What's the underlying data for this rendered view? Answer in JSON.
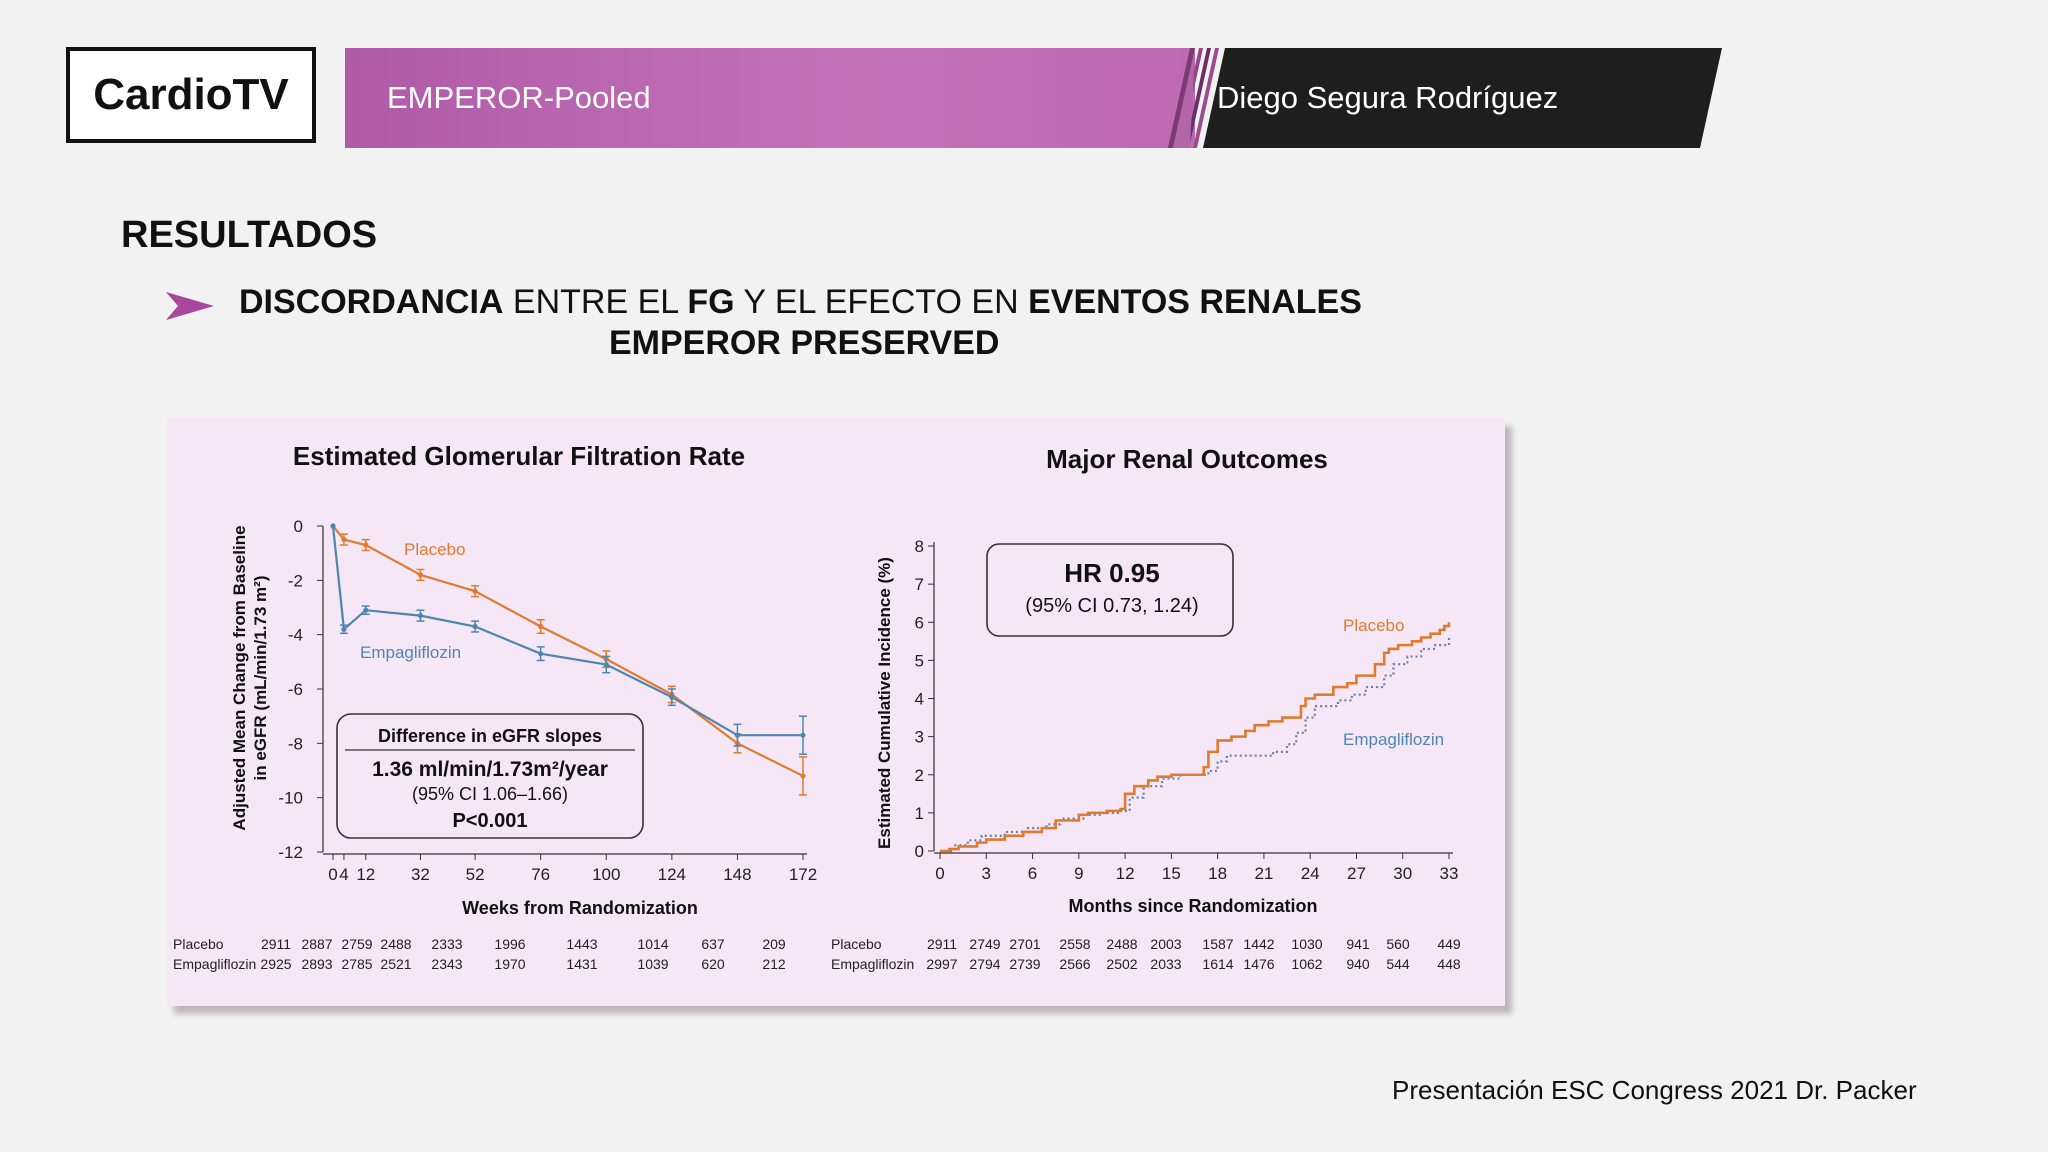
{
  "header": {
    "logo": "CardioTV",
    "title": "EMPEROR-Pooled",
    "speaker": "Diego Segura Rodríguez"
  },
  "slide": {
    "heading": "RESULTADOS",
    "subtitle_parts": [
      {
        "text": "DISCORDANCIA",
        "bold": true
      },
      {
        "text": " ENTRE EL ",
        "bold": false
      },
      {
        "text": "FG",
        "bold": true
      },
      {
        "text": " Y EL EFECTO EN ",
        "bold": false
      },
      {
        "text": "EVENTOS RENALES",
        "bold": true
      }
    ],
    "subtitle_line2": "EMPEROR PRESERVED",
    "footer": "Presentación ESC Congress 2021  Dr. Packer"
  },
  "colors": {
    "placebo": "#e07a2e",
    "empagliflozin": "#4f86b0",
    "banner_purple": "#b666b0",
    "banner_dark": "#1e1e1e",
    "panel_bg": "#f6e7f6",
    "arrow": "#a8479b"
  },
  "chart_data": [
    {
      "type": "line",
      "title": "Estimated Glomerular Filtration Rate",
      "xlabel": "Weeks from Randomization",
      "ylabel_line1": "Adjusted Mean Change from Baseline",
      "ylabel_line2": "in eGFR (mL/min/1.73 m²)",
      "xlim": [
        0,
        172
      ],
      "ylim": [
        -12,
        0
      ],
      "x_ticks": [
        0,
        4,
        12,
        32,
        52,
        76,
        100,
        124,
        148,
        172
      ],
      "y_ticks": [
        0,
        -2,
        -4,
        -6,
        -8,
        -10,
        -12
      ],
      "series": [
        {
          "name": "Placebo",
          "x": [
            0,
            4,
            12,
            32,
            52,
            76,
            100,
            124,
            148,
            172
          ],
          "y": [
            0,
            -0.5,
            -0.7,
            -1.8,
            -2.4,
            -3.7,
            -4.9,
            -6.2,
            -8.0,
            -9.2
          ],
          "err": [
            0,
            0.2,
            0.2,
            0.2,
            0.2,
            0.25,
            0.3,
            0.3,
            0.35,
            0.7
          ]
        },
        {
          "name": "Empagliflozin",
          "x": [
            0,
            4,
            12,
            32,
            52,
            76,
            100,
            124,
            148,
            172
          ],
          "y": [
            0,
            -3.8,
            -3.1,
            -3.3,
            -3.7,
            -4.7,
            -5.1,
            -6.3,
            -7.7,
            -7.7
          ],
          "err": [
            0,
            0.15,
            0.15,
            0.2,
            0.2,
            0.25,
            0.3,
            0.3,
            0.4,
            0.7
          ]
        }
      ],
      "annotation": {
        "title": "Difference in eGFR slopes",
        "value": "1.36 ml/min/1.73m²/year",
        "ci": "(95% CI 1.06–1.66)",
        "p": "P<0.001"
      },
      "at_risk": {
        "rows": [
          {
            "label": "Placebo",
            "values": [
              "2911",
              "2887",
              "2759",
              "2488",
              "2333",
              "1996",
              "1443",
              "1014",
              "637",
              "209"
            ]
          },
          {
            "label": "Empagliflozin",
            "values": [
              "2925",
              "2893",
              "2785",
              "2521",
              "2343",
              "1970",
              "1431",
              "1039",
              "620",
              "212"
            ]
          }
        ],
        "x": [
          0,
          4,
          12,
          32,
          52,
          76,
          100,
          124,
          148,
          172
        ]
      }
    },
    {
      "type": "line",
      "title": "Major Renal Outcomes",
      "xlabel": "Months since Randomization",
      "ylabel": "Estimated Cumulative Incidence (%)",
      "xlim": [
        0,
        33
      ],
      "ylim": [
        0,
        8
      ],
      "x_ticks": [
        0,
        3,
        6,
        9,
        12,
        15,
        18,
        21,
        24,
        27,
        30,
        33
      ],
      "y_ticks": [
        0,
        1,
        2,
        3,
        4,
        5,
        6,
        7,
        8
      ],
      "series": [
        {
          "name": "Placebo",
          "x": [
            0,
            0.6,
            1.2,
            2.4,
            3.0,
            4.2,
            5.4,
            6.6,
            7.5,
            9.0,
            9.6,
            10.8,
            11.7,
            12.0,
            12.6,
            13.5,
            14.1,
            15.0,
            17.1,
            17.4,
            18.0,
            18.9,
            19.8,
            20.4,
            21.3,
            22.2,
            23.4,
            23.7,
            24.3,
            25.5,
            26.4,
            27.0,
            28.2,
            28.8,
            29.1,
            29.7,
            30.6,
            31.2,
            31.8,
            32.4,
            32.7,
            33.0
          ],
          "y": [
            0,
            0.05,
            0.12,
            0.22,
            0.3,
            0.4,
            0.5,
            0.6,
            0.8,
            0.95,
            1.0,
            1.05,
            1.1,
            1.5,
            1.7,
            1.85,
            1.95,
            2.0,
            2.2,
            2.6,
            2.9,
            3.0,
            3.15,
            3.3,
            3.4,
            3.5,
            3.8,
            4.0,
            4.1,
            4.3,
            4.4,
            4.6,
            4.9,
            5.2,
            5.3,
            5.4,
            5.5,
            5.6,
            5.7,
            5.8,
            5.9,
            6.0
          ]
        },
        {
          "name": "Empagliflozin",
          "x": [
            0,
            0.9,
            1.8,
            2.7,
            4.2,
            5.7,
            6.9,
            7.8,
            9.3,
            10.5,
            11.7,
            12.3,
            13.2,
            14.4,
            15.6,
            17.4,
            18.0,
            18.6,
            21.6,
            22.5,
            23.1,
            23.7,
            24.3,
            25.8,
            26.7,
            27.6,
            28.8,
            29.4,
            30.3,
            31.2,
            32.1,
            33.0
          ],
          "y": [
            0,
            0.15,
            0.28,
            0.4,
            0.5,
            0.6,
            0.7,
            0.85,
            0.95,
            1.0,
            1.05,
            1.4,
            1.7,
            1.9,
            2.0,
            2.1,
            2.35,
            2.5,
            2.6,
            2.8,
            3.1,
            3.5,
            3.8,
            3.95,
            4.1,
            4.3,
            4.6,
            4.9,
            5.1,
            5.3,
            5.4,
            5.6
          ]
        }
      ],
      "annotation": {
        "hr": "HR 0.95",
        "ci": "(95% CI 0.73, 1.24)"
      },
      "at_risk": {
        "rows": [
          {
            "label": "Placebo",
            "values": [
              "2911",
              "2749",
              "2701",
              "2558",
              "2488",
              "2003",
              "1587",
              "1442",
              "1030",
              "941",
              "560",
              "449"
            ]
          },
          {
            "label": "Empagliflozin",
            "values": [
              "2997",
              "2794",
              "2739",
              "2566",
              "2502",
              "2033",
              "1614",
              "1476",
              "1062",
              "940",
              "544",
              "448"
            ]
          }
        ],
        "x": [
          0,
          3,
          6,
          9,
          12,
          15,
          18,
          21,
          24,
          27,
          30,
          33
        ]
      }
    }
  ]
}
